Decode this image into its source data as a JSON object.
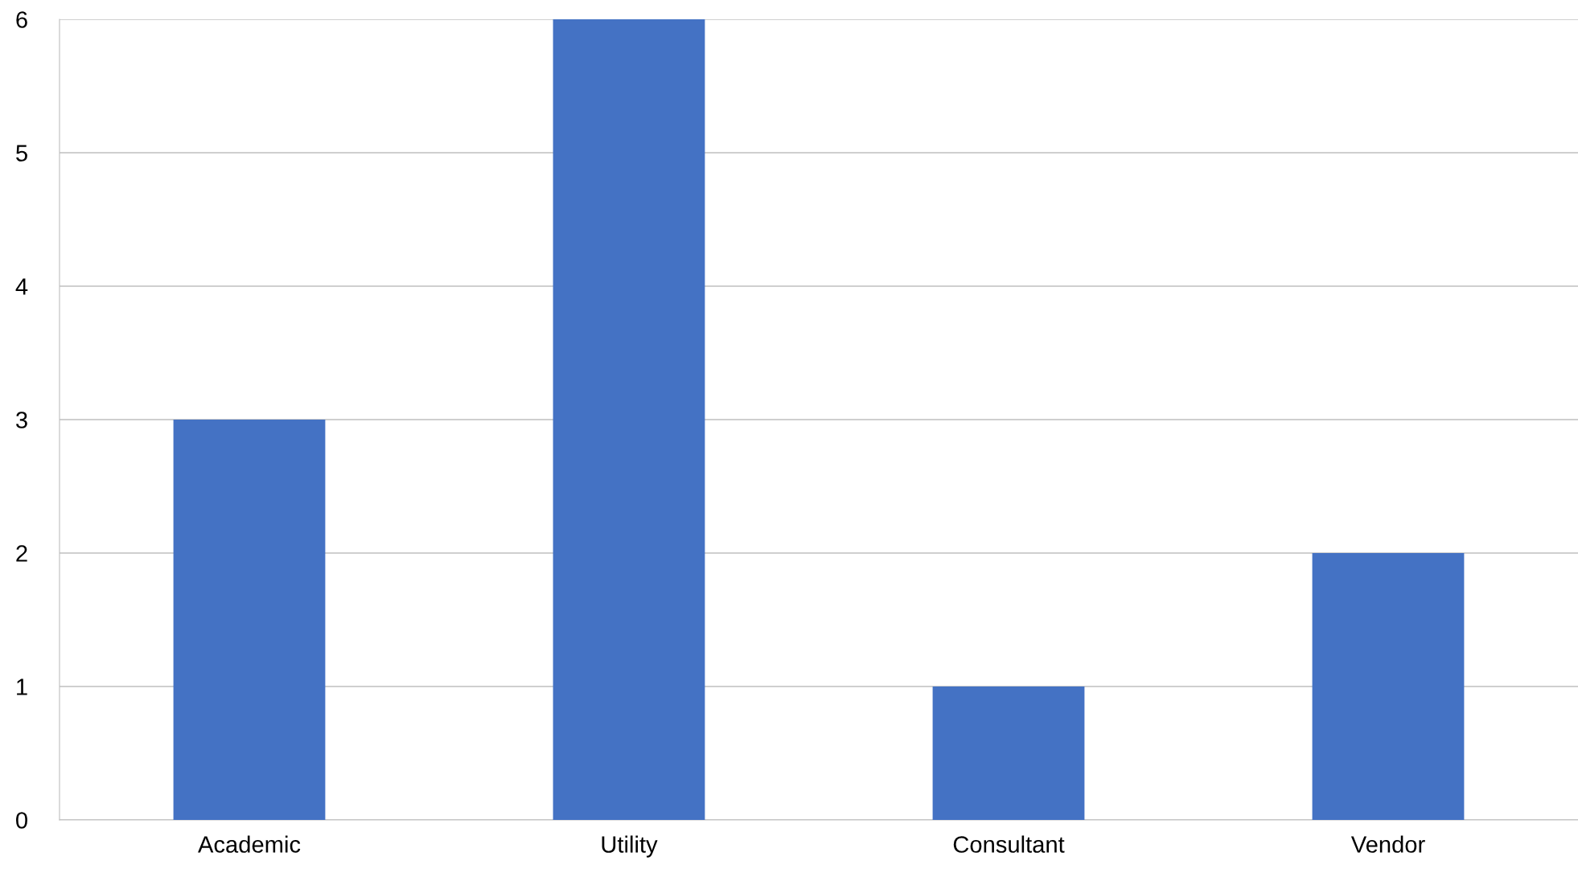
{
  "chart_data": {
    "type": "bar",
    "categories": [
      "Academic",
      "Utility",
      "Consultant",
      "Vendor"
    ],
    "values": [
      3,
      6,
      1,
      2
    ],
    "color": "#4472c4",
    "ylim": [
      0,
      6
    ],
    "yticks": [
      0,
      1,
      2,
      3,
      4,
      5,
      6
    ],
    "grid": "y"
  }
}
